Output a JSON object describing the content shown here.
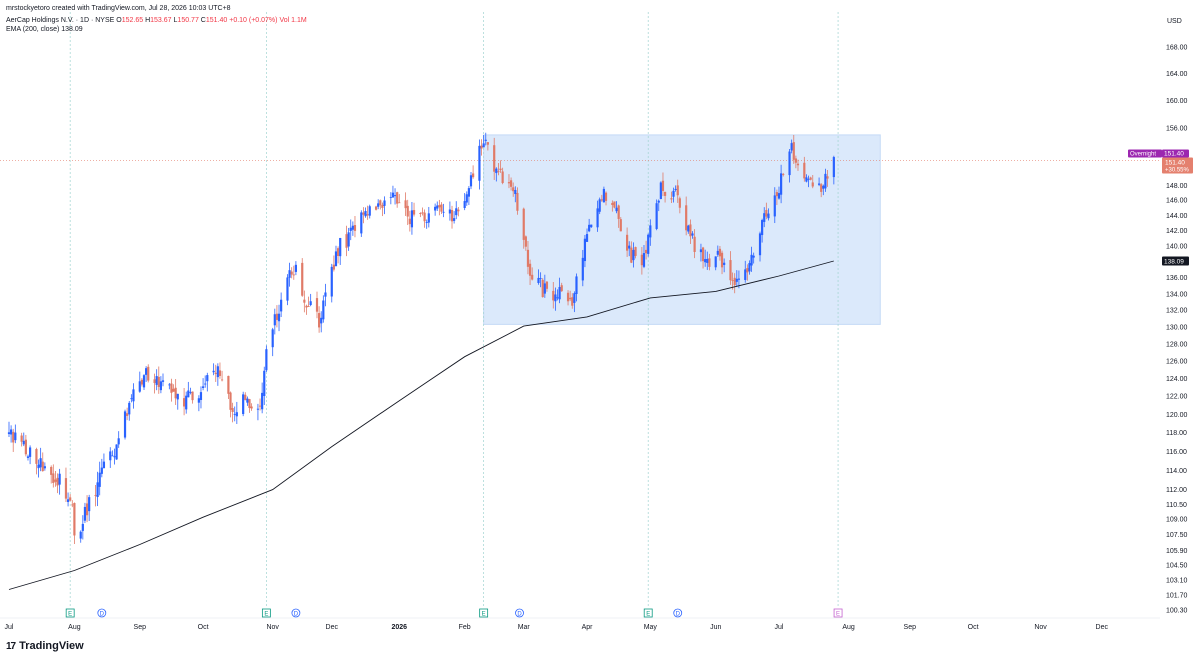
{
  "header": {
    "created_by": "mrstockyetoro created with TradingView.com, Jul 28, 2026 10:03 UTC+8",
    "symbol": "AerCap Holdings N.V. · 1D · NYSE",
    "ohlc": [
      {
        "label": "O",
        "value": "152.65"
      },
      {
        "label": "H",
        "value": "153.67"
      },
      {
        "label": "L",
        "value": "150.77"
      },
      {
        "label": "C",
        "value": "151.40"
      }
    ],
    "change": "+0.10 (+0.07%)",
    "volume": "Vol 1.1M",
    "ema_label": "EMA (200, close)",
    "ema_value": "138.09"
  },
  "brand": {
    "name": "TradingView",
    "logo": "17"
  },
  "colors": {
    "up": "#2962ff",
    "down": "#e07a67",
    "ema": "#131722",
    "box_fill": "#dbe9fb",
    "box_stroke": "#c4daf6",
    "overnight_tag": "#9c27b0",
    "price_tag": "#e4806e",
    "earnings_marker": "#089981",
    "dividend_marker": "#2962ff",
    "upcoming_earnings": "#c462cf"
  },
  "chart_data": {
    "type": "candlestick",
    "currency": "USD",
    "y_ticks": [
      "100.30",
      "101.70",
      "103.10",
      "104.50",
      "105.90",
      "107.50",
      "109.00",
      "110.50",
      "112.00",
      "114.00",
      "116.00",
      "118.00",
      "120.00",
      "122.00",
      "124.00",
      "126.00",
      "128.00",
      "130.00",
      "132.00",
      "134.00",
      "136.00",
      "138.00",
      "140.00",
      "142.00",
      "144.00",
      "146.00",
      "148.00",
      "150.00",
      "152.00",
      "156.00",
      "160.00",
      "164.00",
      "168.00"
    ],
    "x_labels": [
      {
        "label": "Jul",
        "date": "2025-07-01",
        "bold": false
      },
      {
        "label": "Aug",
        "date": "2025-08-01",
        "bold": false
      },
      {
        "label": "Sep",
        "date": "2025-09-01",
        "bold": false
      },
      {
        "label": "Oct",
        "date": "2025-10-01",
        "bold": false
      },
      {
        "label": "Nov",
        "date": "2025-11-03",
        "bold": false
      },
      {
        "label": "Dec",
        "date": "2025-12-01",
        "bold": false
      },
      {
        "label": "2026",
        "date": "2026-01-02",
        "bold": true
      },
      {
        "label": "Feb",
        "date": "2026-02-02",
        "bold": false
      },
      {
        "label": "Mar",
        "date": "2026-03-02",
        "bold": false
      },
      {
        "label": "Apr",
        "date": "2026-04-01",
        "bold": false
      },
      {
        "label": "May",
        "date": "2026-05-01",
        "bold": false
      },
      {
        "label": "Jun",
        "date": "2026-06-01",
        "bold": false
      },
      {
        "label": "Jul",
        "date": "2026-07-01",
        "bold": false
      },
      {
        "label": "Aug",
        "date": "2026-08-03",
        "bold": false
      },
      {
        "label": "Sep",
        "date": "2026-09-01",
        "bold": false
      },
      {
        "label": "Oct",
        "date": "2026-10-01",
        "bold": false
      },
      {
        "label": "Nov",
        "date": "2026-11-02",
        "bold": false
      },
      {
        "label": "Dec",
        "date": "2026-12-01",
        "bold": false
      }
    ],
    "price_anchors": [
      {
        "date": "2025-07-01",
        "close": 117.5
      },
      {
        "date": "2025-07-15",
        "close": 115.2
      },
      {
        "date": "2025-07-25",
        "close": 113.0
      },
      {
        "date": "2025-07-31",
        "close": 109.5
      },
      {
        "date": "2025-08-01",
        "close": 107.2
      },
      {
        "date": "2025-08-06",
        "close": 109.8
      },
      {
        "date": "2025-08-14",
        "close": 113.5
      },
      {
        "date": "2025-08-22",
        "close": 117.5
      },
      {
        "date": "2025-08-28",
        "close": 122.5
      },
      {
        "date": "2025-09-05",
        "close": 124.5
      },
      {
        "date": "2025-09-15",
        "close": 123.0
      },
      {
        "date": "2025-09-25",
        "close": 121.5
      },
      {
        "date": "2025-10-01",
        "close": 123.5
      },
      {
        "date": "2025-10-06",
        "close": 125.5
      },
      {
        "date": "2025-10-14",
        "close": 121.0
      },
      {
        "date": "2025-10-22",
        "close": 121.3
      },
      {
        "date": "2025-10-28",
        "close": 121.0
      },
      {
        "date": "2025-10-31",
        "close": 127.0
      },
      {
        "date": "2025-11-03",
        "close": 130.0
      },
      {
        "date": "2025-11-10",
        "close": 135.5
      },
      {
        "date": "2025-11-14",
        "close": 137.0
      },
      {
        "date": "2025-11-18",
        "close": 133.0
      },
      {
        "date": "2025-11-25",
        "close": 131.0
      },
      {
        "date": "2025-12-01",
        "close": 136.5
      },
      {
        "date": "2025-12-05",
        "close": 140.0
      },
      {
        "date": "2025-12-12",
        "close": 142.0
      },
      {
        "date": "2025-12-19",
        "close": 145.0
      },
      {
        "date": "2025-12-29",
        "close": 146.5
      },
      {
        "date": "2026-01-05",
        "close": 144.0
      },
      {
        "date": "2026-01-12",
        "close": 143.5
      },
      {
        "date": "2026-01-21",
        "close": 145.0
      },
      {
        "date": "2026-01-28",
        "close": 143.5
      },
      {
        "date": "2026-02-04",
        "close": 147.5
      },
      {
        "date": "2026-02-11",
        "close": 154.5
      },
      {
        "date": "2026-02-18",
        "close": 149.5
      },
      {
        "date": "2026-02-25",
        "close": 148.0
      },
      {
        "date": "2026-03-04",
        "close": 137.5
      },
      {
        "date": "2026-03-11",
        "close": 134.5
      },
      {
        "date": "2026-03-18",
        "close": 134.0
      },
      {
        "date": "2026-03-25",
        "close": 133.5
      },
      {
        "date": "2026-03-31",
        "close": 140.0
      },
      {
        "date": "2026-04-07",
        "close": 147.0
      },
      {
        "date": "2026-04-14",
        "close": 146.0
      },
      {
        "date": "2026-04-21",
        "close": 139.0
      },
      {
        "date": "2026-04-28",
        "close": 138.5
      },
      {
        "date": "2026-05-06",
        "close": 147.5
      },
      {
        "date": "2026-05-13",
        "close": 147.0
      },
      {
        "date": "2026-05-20",
        "close": 141.0
      },
      {
        "date": "2026-05-27",
        "close": 138.0
      },
      {
        "date": "2026-06-03",
        "close": 139.0
      },
      {
        "date": "2026-06-10",
        "close": 134.5
      },
      {
        "date": "2026-06-17",
        "close": 137.0
      },
      {
        "date": "2026-06-24",
        "close": 144.0
      },
      {
        "date": "2026-07-01",
        "close": 147.5
      },
      {
        "date": "2026-07-06",
        "close": 153.5
      },
      {
        "date": "2026-07-13",
        "close": 149.0
      },
      {
        "date": "2026-07-20",
        "close": 147.5
      },
      {
        "date": "2026-07-27",
        "close": 151.4
      }
    ],
    "ema_anchors": [
      {
        "date": "2025-07-01",
        "value": 102.2
      },
      {
        "date": "2025-08-01",
        "value": 104.0
      },
      {
        "date": "2025-09-01",
        "value": 106.5
      },
      {
        "date": "2025-10-01",
        "value": 109.2
      },
      {
        "date": "2025-11-03",
        "value": 112.0
      },
      {
        "date": "2025-12-01",
        "value": 116.5
      },
      {
        "date": "2026-01-02",
        "value": 121.5
      },
      {
        "date": "2026-02-02",
        "value": 126.5
      },
      {
        "date": "2026-03-02",
        "value": 130.1
      },
      {
        "date": "2026-04-01",
        "value": 131.2
      },
      {
        "date": "2026-05-01",
        "value": 133.5
      },
      {
        "date": "2026-06-01",
        "value": 134.3
      },
      {
        "date": "2026-07-01",
        "value": 136.2
      },
      {
        "date": "2026-07-27",
        "value": 138.09
      }
    ],
    "range_box": {
      "start": "2026-02-11",
      "end": "2026-08-18",
      "top": 155.0,
      "bottom": 130.3
    },
    "last_price": {
      "value": 151.4,
      "label": "151.40",
      "change": "+30.55%",
      "overnight_label": "Overnight",
      "overnight_value": "151.40"
    },
    "ema_tag": {
      "value": 138.09,
      "label": "138.09"
    },
    "markers": [
      {
        "date": "2025-07-30",
        "kind": "earnings",
        "label": "E"
      },
      {
        "date": "2025-08-14",
        "kind": "dividend",
        "label": "D"
      },
      {
        "date": "2025-10-31",
        "kind": "earnings",
        "label": "E"
      },
      {
        "date": "2025-11-14",
        "kind": "dividend",
        "label": "D"
      },
      {
        "date": "2026-02-11",
        "kind": "earnings",
        "label": "E"
      },
      {
        "date": "2026-02-28",
        "kind": "dividend",
        "label": "D"
      },
      {
        "date": "2026-04-30",
        "kind": "earnings",
        "label": "E"
      },
      {
        "date": "2026-05-14",
        "kind": "dividend",
        "label": "D"
      },
      {
        "date": "2026-07-29",
        "kind": "upcoming-earnings",
        "label": "E"
      }
    ]
  }
}
